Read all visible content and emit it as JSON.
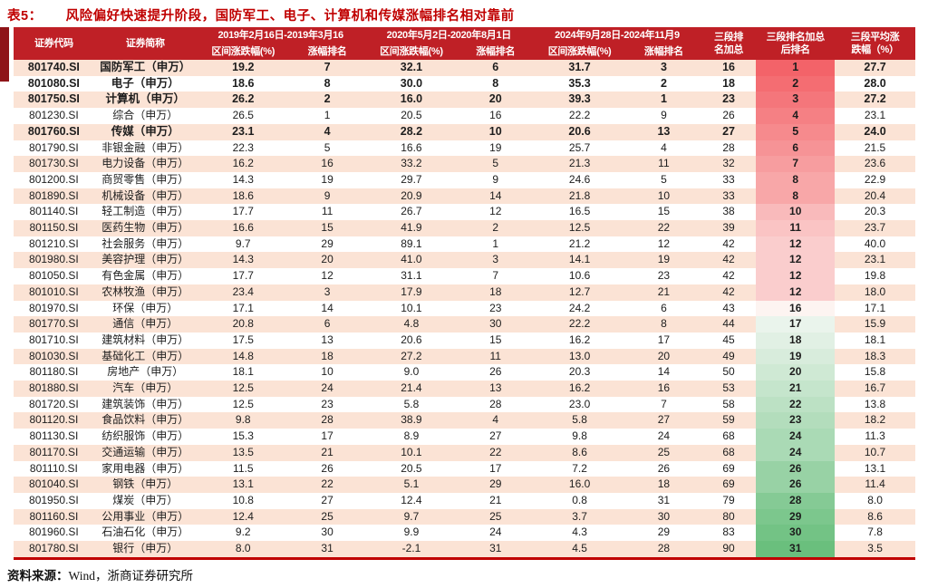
{
  "title": {
    "prefix": "表5：",
    "text": "风险偏好快速提升阶段，国防军工、电子、计算机和传媒涨幅排名相对靠前"
  },
  "colors": {
    "title_red": "#c00000",
    "header_bg": "#bf2026",
    "accent_dark": "#8e1418",
    "row_stripe": "#fbe3d5",
    "rank_gradient_top": "#f3656a",
    "rank_gradient_mid": "#fdf4f1",
    "rank_gradient_bottom": "#6abf7d"
  },
  "table": {
    "header": {
      "code": "证券代码",
      "name": "证券简称",
      "period1": "2019年2月16日-2019年3月16",
      "period2": "2020年5月2日-2020年8月1日",
      "period3": "2024年9月28日-2024年11月9",
      "sub_chg": "区间涨跌幅(%)",
      "sub_rank": "涨幅排名",
      "rank_sum_l1": "三段排",
      "rank_sum_l2": "名加总",
      "final_rank_l1": "三段排名加总",
      "final_rank_l2": "后排名",
      "avg_l1": "三段平均涨",
      "avg_l2": "跌幅（%）"
    },
    "bold_rows": [
      0,
      1,
      2,
      4
    ],
    "rows": [
      [
        "801740.SI",
        "国防军工（申万）",
        "19.2",
        "7",
        "32.1",
        "6",
        "31.7",
        "3",
        "16",
        "1",
        "27.7"
      ],
      [
        "801080.SI",
        "电子（申万）",
        "18.6",
        "8",
        "30.0",
        "8",
        "35.3",
        "2",
        "18",
        "2",
        "28.0"
      ],
      [
        "801750.SI",
        "计算机（申万）",
        "26.2",
        "2",
        "16.0",
        "20",
        "39.3",
        "1",
        "23",
        "3",
        "27.2"
      ],
      [
        "801230.SI",
        "综合（申万）",
        "26.5",
        "1",
        "20.5",
        "16",
        "22.2",
        "9",
        "26",
        "4",
        "23.1"
      ],
      [
        "801760.SI",
        "传媒（申万）",
        "23.1",
        "4",
        "28.2",
        "10",
        "20.6",
        "13",
        "27",
        "5",
        "24.0"
      ],
      [
        "801790.SI",
        "非银金融（申万）",
        "22.3",
        "5",
        "16.6",
        "19",
        "25.7",
        "4",
        "28",
        "6",
        "21.5"
      ],
      [
        "801730.SI",
        "电力设备（申万）",
        "16.2",
        "16",
        "33.2",
        "5",
        "21.3",
        "11",
        "32",
        "7",
        "23.6"
      ],
      [
        "801200.SI",
        "商贸零售（申万）",
        "14.3",
        "19",
        "29.7",
        "9",
        "24.6",
        "5",
        "33",
        "8",
        "22.9"
      ],
      [
        "801890.SI",
        "机械设备（申万）",
        "18.6",
        "9",
        "20.9",
        "14",
        "21.8",
        "10",
        "33",
        "8",
        "20.4"
      ],
      [
        "801140.SI",
        "轻工制造（申万）",
        "17.7",
        "11",
        "26.7",
        "12",
        "16.5",
        "15",
        "38",
        "10",
        "20.3"
      ],
      [
        "801150.SI",
        "医药生物（申万）",
        "16.6",
        "15",
        "41.9",
        "2",
        "12.5",
        "22",
        "39",
        "11",
        "23.7"
      ],
      [
        "801210.SI",
        "社会服务（申万）",
        "9.7",
        "29",
        "89.1",
        "1",
        "21.2",
        "12",
        "42",
        "12",
        "40.0"
      ],
      [
        "801980.SI",
        "美容护理（申万）",
        "14.3",
        "20",
        "41.0",
        "3",
        "14.1",
        "19",
        "42",
        "12",
        "23.1"
      ],
      [
        "801050.SI",
        "有色金属（申万）",
        "17.7",
        "12",
        "31.1",
        "7",
        "10.6",
        "23",
        "42",
        "12",
        "19.8"
      ],
      [
        "801010.SI",
        "农林牧渔（申万）",
        "23.4",
        "3",
        "17.9",
        "18",
        "12.7",
        "21",
        "42",
        "12",
        "18.0"
      ],
      [
        "801970.SI",
        "环保（申万）",
        "17.1",
        "14",
        "10.1",
        "23",
        "24.2",
        "6",
        "43",
        "16",
        "17.1"
      ],
      [
        "801770.SI",
        "通信（申万）",
        "20.8",
        "6",
        "4.8",
        "30",
        "22.2",
        "8",
        "44",
        "17",
        "15.9"
      ],
      [
        "801710.SI",
        "建筑材料（申万）",
        "17.5",
        "13",
        "20.6",
        "15",
        "16.2",
        "17",
        "45",
        "18",
        "18.1"
      ],
      [
        "801030.SI",
        "基础化工（申万）",
        "14.8",
        "18",
        "27.2",
        "11",
        "13.0",
        "20",
        "49",
        "19",
        "18.3"
      ],
      [
        "801180.SI",
        "房地产（申万）",
        "18.1",
        "10",
        "9.0",
        "26",
        "20.3",
        "14",
        "50",
        "20",
        "15.8"
      ],
      [
        "801880.SI",
        "汽车（申万）",
        "12.5",
        "24",
        "21.4",
        "13",
        "16.2",
        "16",
        "53",
        "21",
        "16.7"
      ],
      [
        "801720.SI",
        "建筑装饰（申万）",
        "12.5",
        "23",
        "5.8",
        "28",
        "23.0",
        "7",
        "58",
        "22",
        "13.8"
      ],
      [
        "801120.SI",
        "食品饮料（申万）",
        "9.8",
        "28",
        "38.9",
        "4",
        "5.8",
        "27",
        "59",
        "23",
        "18.2"
      ],
      [
        "801130.SI",
        "纺织服饰（申万）",
        "15.3",
        "17",
        "8.9",
        "27",
        "9.8",
        "24",
        "68",
        "24",
        "11.3"
      ],
      [
        "801170.SI",
        "交通运输（申万）",
        "13.5",
        "21",
        "10.1",
        "22",
        "8.6",
        "25",
        "68",
        "24",
        "10.7"
      ],
      [
        "801110.SI",
        "家用电器（申万）",
        "11.5",
        "26",
        "20.5",
        "17",
        "7.2",
        "26",
        "69",
        "26",
        "13.1"
      ],
      [
        "801040.SI",
        "钢铁（申万）",
        "13.1",
        "22",
        "5.1",
        "29",
        "16.0",
        "18",
        "69",
        "26",
        "11.4"
      ],
      [
        "801950.SI",
        "煤炭（申万）",
        "10.8",
        "27",
        "12.4",
        "21",
        "0.8",
        "31",
        "79",
        "28",
        "8.0"
      ],
      [
        "801160.SI",
        "公用事业（申万）",
        "12.4",
        "25",
        "9.7",
        "25",
        "3.7",
        "30",
        "80",
        "29",
        "8.6"
      ],
      [
        "801960.SI",
        "石油石化（申万）",
        "9.2",
        "30",
        "9.9",
        "24",
        "4.3",
        "29",
        "83",
        "30",
        "7.8"
      ],
      [
        "801780.SI",
        "银行（申万）",
        "8.0",
        "31",
        "-2.1",
        "31",
        "4.5",
        "28",
        "90",
        "31",
        "3.5"
      ]
    ]
  },
  "footer": {
    "label": "资料来源：",
    "text": "Wind，浙商证券研究所"
  }
}
